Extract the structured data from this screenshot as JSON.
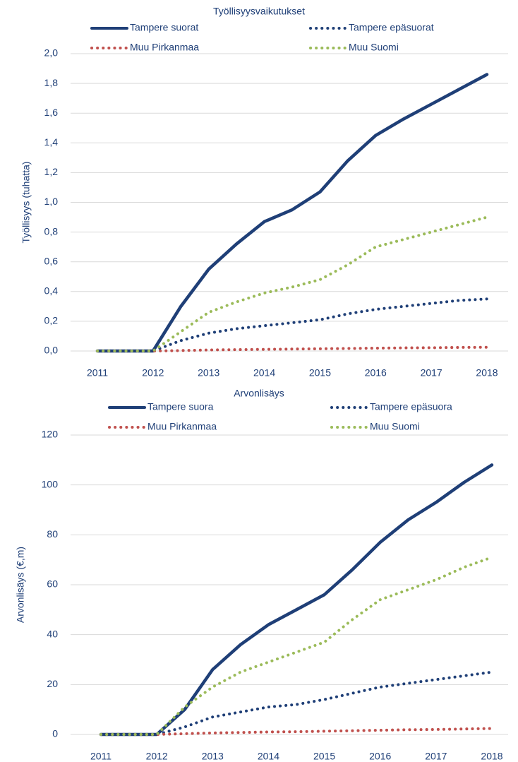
{
  "chart_data": [
    {
      "type": "line",
      "title": "Työllisyysvaikutukset",
      "ylabel": "Työllisyys (tuhatta)",
      "x": [
        2011,
        2011.5,
        2012,
        2012.5,
        2013,
        2013.5,
        2014,
        2014.5,
        2015,
        2015.5,
        2016,
        2016.5,
        2017,
        2017.5,
        2018
      ],
      "xlim": [
        2011,
        2018
      ],
      "xticks": [
        2011,
        2012,
        2013,
        2014,
        2015,
        2016,
        2017,
        2018
      ],
      "ylim": [
        0,
        2
      ],
      "yticks": [
        {
          "value": 0,
          "label": "0,0"
        },
        {
          "value": 0.2,
          "label": "0,2"
        },
        {
          "value": 0.4,
          "label": "0,4"
        },
        {
          "value": 0.6,
          "label": "0,6"
        },
        {
          "value": 0.8,
          "label": "0,8"
        },
        {
          "value": 1,
          "label": "1,0"
        },
        {
          "value": 1.2,
          "label": "1,2"
        },
        {
          "value": 1.4,
          "label": "1,4"
        },
        {
          "value": 1.6,
          "label": "1,6"
        },
        {
          "value": 1.8,
          "label": "1,8"
        },
        {
          "value": 2,
          "label": "2,0"
        }
      ],
      "grid": true,
      "series": [
        {
          "name": "Tampere suorat",
          "color": "#1f3f77",
          "style": "solid",
          "values": [
            0,
            0,
            0,
            0.3,
            0.55,
            0.72,
            0.87,
            0.95,
            1.07,
            1.28,
            1.45,
            1.56,
            1.66,
            1.76,
            1.86
          ]
        },
        {
          "name": "Tampere epäsuorat",
          "color": "#1f3f77",
          "style": "dotted",
          "values": [
            0,
            0,
            0,
            0.07,
            0.12,
            0.15,
            0.17,
            0.19,
            0.21,
            0.25,
            0.28,
            0.3,
            0.32,
            0.34,
            0.35
          ]
        },
        {
          "name": "Muu Pirkanmaa",
          "color": "#c0504d",
          "style": "dotted",
          "values": [
            0,
            0,
            0,
            0.003,
            0.007,
            0.009,
            0.011,
            0.013,
            0.015,
            0.017,
            0.019,
            0.021,
            0.022,
            0.024,
            0.025
          ]
        },
        {
          "name": "Muu Suomi",
          "color": "#9bbb59",
          "style": "dotted",
          "values": [
            0,
            0,
            0,
            0.13,
            0.26,
            0.33,
            0.39,
            0.43,
            0.48,
            0.58,
            0.7,
            0.75,
            0.8,
            0.85,
            0.9
          ]
        }
      ]
    },
    {
      "type": "line",
      "title": "Arvonlisäys",
      "ylabel": "Arvonlisäys (€,m)",
      "x": [
        2011,
        2011.5,
        2012,
        2012.5,
        2013,
        2013.5,
        2014,
        2014.5,
        2015,
        2015.5,
        2016,
        2016.5,
        2017,
        2017.5,
        2018
      ],
      "xlim": [
        2011,
        2018
      ],
      "xticks": [
        2011,
        2012,
        2013,
        2014,
        2015,
        2016,
        2017,
        2018
      ],
      "ylim": [
        0,
        120
      ],
      "yticks": [
        0,
        20,
        40,
        60,
        80,
        100,
        120
      ],
      "grid": true,
      "series": [
        {
          "name": "Tampere suora",
          "color": "#1f3f77",
          "style": "solid",
          "values": [
            0,
            0,
            0,
            10,
            26,
            36,
            44,
            50,
            56,
            66,
            77,
            86,
            93,
            101,
            108
          ]
        },
        {
          "name": "Tampere epäsuora",
          "color": "#1f3f77",
          "style": "dotted",
          "values": [
            0,
            0,
            0,
            3,
            7,
            9,
            11,
            12,
            14,
            16.5,
            19,
            20.5,
            22,
            23.5,
            25
          ]
        },
        {
          "name": "Muu Pirkanmaa",
          "color": "#c0504d",
          "style": "dotted",
          "values": [
            0,
            0,
            0,
            0.3,
            0.6,
            0.8,
            1,
            1.1,
            1.3,
            1.5,
            1.7,
            1.9,
            2,
            2.2,
            2.4
          ]
        },
        {
          "name": "Muu Suomi",
          "color": "#9bbb59",
          "style": "dotted",
          "values": [
            0,
            0,
            0,
            11,
            19,
            25,
            29,
            33,
            37,
            46,
            54,
            58,
            62,
            67,
            71
          ]
        }
      ]
    }
  ]
}
